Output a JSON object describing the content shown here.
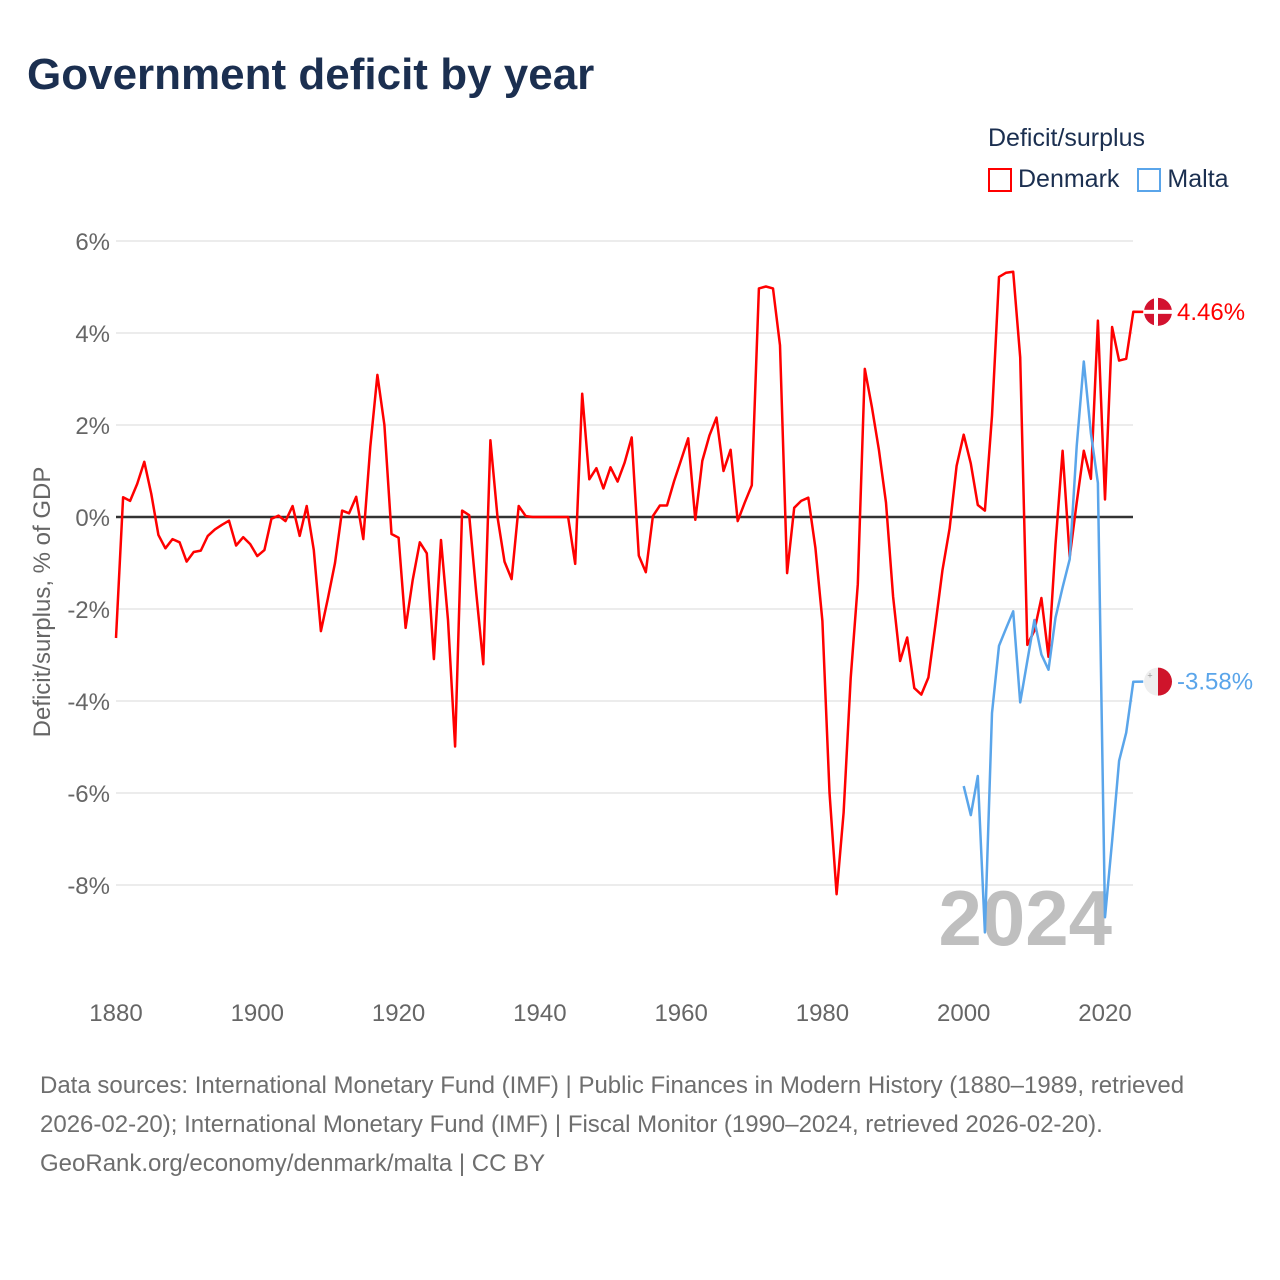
{
  "title": "Government deficit by year",
  "legend": {
    "title": "Deficit/surplus",
    "items": [
      {
        "label": "Denmark",
        "color": "#ff0000"
      },
      {
        "label": "Malta",
        "color": "#5aa5ea"
      }
    ]
  },
  "chart_data": {
    "type": "line",
    "title": "Government deficit by year",
    "xlabel": "",
    "ylabel": "Deficit/surplus, % of GDP",
    "xlim": [
      1880,
      2024
    ],
    "ylim": [
      -10,
      6
    ],
    "x_ticks": [
      "1880",
      "1900",
      "1920",
      "1940",
      "1960",
      "1980",
      "2000",
      "2020"
    ],
    "y_ticks": [
      {
        "v": 6,
        "label": "6%"
      },
      {
        "v": 4,
        "label": "4%"
      },
      {
        "v": 2,
        "label": "2%"
      },
      {
        "v": 0,
        "label": "0%"
      },
      {
        "v": -2,
        "label": "-2%"
      },
      {
        "v": -4,
        "label": "-4%"
      },
      {
        "v": -6,
        "label": "-6%"
      },
      {
        "v": -8,
        "label": "-8%"
      }
    ],
    "grid": true,
    "legend_position": "top-right",
    "year_watermark": "2024",
    "series": [
      {
        "name": "Denmark",
        "color": "#ff0000",
        "start_year": 1880,
        "end_label": "4.46%",
        "values": [
          -2.63,
          0.43,
          0.35,
          0.72,
          1.2,
          0.5,
          -0.39,
          -0.68,
          -0.48,
          -0.55,
          -0.97,
          -0.76,
          -0.73,
          -0.41,
          -0.27,
          -0.17,
          -0.08,
          -0.62,
          -0.44,
          -0.59,
          -0.85,
          -0.72,
          -0.04,
          0.03,
          -0.09,
          0.24,
          -0.41,
          0.24,
          -0.72,
          -2.48,
          -1.77,
          -1.0,
          0.14,
          0.08,
          0.44,
          -0.48,
          1.53,
          3.09,
          2.0,
          -0.37,
          -0.45,
          -2.41,
          -1.37,
          -0.55,
          -0.79,
          -3.09,
          -0.5,
          -2.24,
          -4.99,
          0.14,
          0.04,
          -1.66,
          -3.2,
          1.67,
          0.0,
          -0.97,
          -1.35,
          0.24,
          0.02,
          0.0,
          0.0,
          0.0,
          0.0,
          0.0,
          0.0,
          -1.02,
          2.68,
          0.82,
          1.06,
          0.62,
          1.08,
          0.77,
          1.18,
          1.73,
          -0.84,
          -1.2,
          0.02,
          0.25,
          0.25,
          0.78,
          1.24,
          1.71,
          -0.06,
          1.22,
          1.77,
          2.16,
          1.0,
          1.46,
          -0.09,
          0.31,
          0.69,
          4.97,
          5.01,
          4.97,
          3.73,
          -1.22,
          0.2,
          0.35,
          0.42,
          -0.67,
          -2.26,
          -5.99,
          -8.2,
          -6.43,
          -3.5,
          -1.46,
          3.22,
          2.39,
          1.46,
          0.31,
          -1.73,
          -3.13,
          -2.62,
          -3.72,
          -3.86,
          -3.49,
          -2.33,
          -1.15,
          -0.25,
          1.11,
          1.79,
          1.16,
          0.26,
          0.14,
          2.2,
          5.22,
          5.31,
          5.33,
          3.47,
          -2.78,
          -2.47,
          -1.76,
          -3.04,
          -0.6,
          1.44,
          -0.87,
          0.31,
          1.44,
          0.83,
          4.27,
          0.38,
          4.13,
          3.4,
          3.44,
          4.46
        ]
      },
      {
        "name": "Malta",
        "color": "#5aa5ea",
        "start_year": 2000,
        "end_label": "-3.58%",
        "values": [
          -5.85,
          -6.48,
          -5.63,
          -9.03,
          -4.26,
          -2.8,
          -2.42,
          -2.05,
          -4.03,
          -3.13,
          -2.24,
          -2.99,
          -3.32,
          -2.19,
          -1.53,
          -0.92,
          1.54,
          3.38,
          1.82,
          0.74,
          -8.7,
          -7.05,
          -5.3,
          -4.69,
          -3.58
        ]
      }
    ]
  },
  "footer": {
    "sources": "Data sources: International Monetary Fund (IMF) | Public Finances in Modern History (1880–1989, retrieved 2026-02-20); International Monetary Fund (IMF) | Fiscal Monitor (1990–2024, retrieved 2026-02-20).",
    "attribution": "GeoRank.org/economy/denmark/malta | CC BY"
  }
}
